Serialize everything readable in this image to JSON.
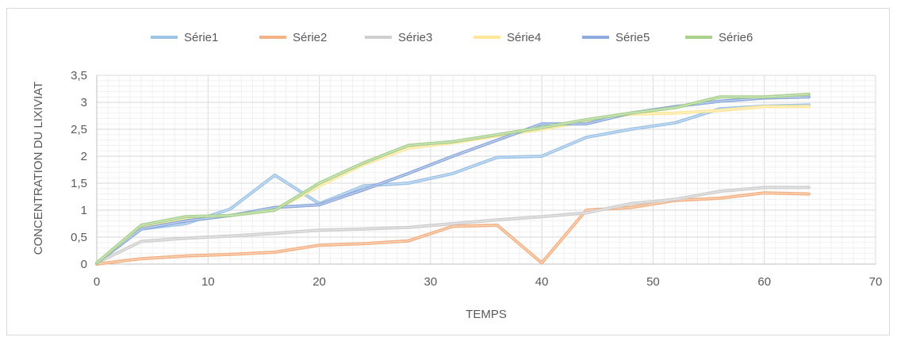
{
  "chart_data": {
    "type": "line",
    "title": "",
    "xlabel": "TEMPS",
    "ylabel": "CONCENTRATION DU LIXIVIAT",
    "xlim": [
      0,
      70
    ],
    "ylim": [
      0,
      3.5
    ],
    "x_ticks": [
      "0",
      "10",
      "20",
      "30",
      "40",
      "50",
      "60",
      "70"
    ],
    "y_ticks": [
      "0",
      "0,5",
      "1",
      "1,5",
      "2",
      "2,5",
      "3",
      "3,5"
    ],
    "grid": true,
    "legend_position": "top",
    "series": [
      {
        "name": "Série1",
        "color": "#9dc3e6",
        "x": [
          0,
          4,
          8,
          12,
          16,
          20,
          24,
          28,
          32,
          36,
          40,
          44,
          48,
          52,
          56,
          60,
          64
        ],
        "y": [
          0.02,
          0.65,
          0.75,
          1.02,
          1.65,
          1.12,
          1.45,
          1.5,
          1.68,
          1.98,
          2.0,
          2.35,
          2.5,
          2.62,
          2.88,
          2.93,
          2.95
        ]
      },
      {
        "name": "Série2",
        "color": "#f4b183",
        "x": [
          0,
          4,
          8,
          12,
          16,
          20,
          24,
          28,
          32,
          36,
          40,
          44,
          48,
          52,
          56,
          60,
          64
        ],
        "y": [
          0.0,
          0.1,
          0.15,
          0.18,
          0.22,
          0.35,
          0.38,
          0.43,
          0.7,
          0.72,
          0.02,
          1.0,
          1.05,
          1.18,
          1.22,
          1.32,
          1.3
        ]
      },
      {
        "name": "Série3",
        "color": "#d0cece",
        "x": [
          0,
          4,
          8,
          12,
          16,
          20,
          24,
          28,
          32,
          36,
          40,
          44,
          48,
          52,
          56,
          60,
          64
        ],
        "y": [
          0.02,
          0.42,
          0.48,
          0.52,
          0.57,
          0.63,
          0.65,
          0.68,
          0.75,
          0.82,
          0.88,
          0.95,
          1.12,
          1.2,
          1.35,
          1.42,
          1.42
        ]
      },
      {
        "name": "Série4",
        "color": "#ffe699",
        "x": [
          0,
          4,
          8,
          12,
          16,
          20,
          24,
          28,
          32,
          36,
          40,
          44,
          48,
          52,
          56,
          60,
          64
        ],
        "y": [
          0.02,
          0.7,
          0.85,
          0.9,
          1.0,
          1.45,
          1.85,
          2.15,
          2.25,
          2.38,
          2.5,
          2.65,
          2.78,
          2.8,
          2.85,
          2.92,
          2.92
        ]
      },
      {
        "name": "Série5",
        "color": "#8faadc",
        "x": [
          0,
          4,
          8,
          12,
          16,
          20,
          24,
          28,
          32,
          36,
          40,
          44,
          48,
          52,
          56,
          60,
          64
        ],
        "y": [
          0.02,
          0.65,
          0.8,
          0.9,
          1.05,
          1.1,
          1.38,
          1.68,
          2.0,
          2.3,
          2.6,
          2.6,
          2.8,
          2.92,
          3.02,
          3.08,
          3.1
        ]
      },
      {
        "name": "Série6",
        "color": "#a9d18e",
        "x": [
          0,
          4,
          8,
          12,
          16,
          20,
          24,
          28,
          32,
          36,
          40,
          44,
          48,
          52,
          56,
          60,
          64
        ],
        "y": [
          0.02,
          0.72,
          0.88,
          0.9,
          1.0,
          1.5,
          1.88,
          2.2,
          2.27,
          2.4,
          2.53,
          2.68,
          2.8,
          2.9,
          3.1,
          3.1,
          3.15
        ]
      }
    ]
  }
}
